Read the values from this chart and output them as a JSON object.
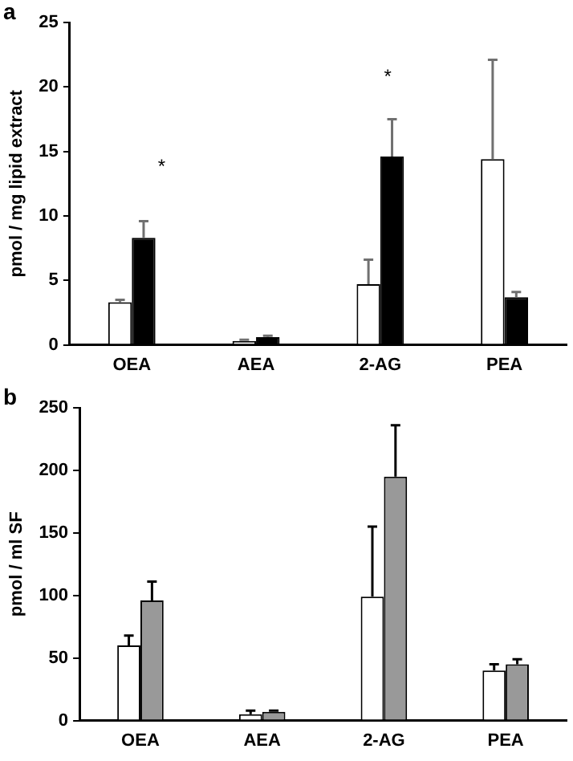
{
  "chart_data": [
    {
      "type": "bar",
      "title": "a",
      "ylabel": "pmol / mg lipid extract",
      "categories": [
        "OEA",
        "AEA",
        "2-AG",
        "PEA"
      ],
      "series": [
        {
          "color": "#ffffff",
          "values": [
            3.3,
            0.3,
            4.7,
            14.4
          ],
          "errors": [
            [
              3.3,
              3.5
            ],
            [
              0.3,
              0.4
            ],
            [
              4.7,
              6.6
            ],
            [
              14.4,
              22.1
            ]
          ]
        },
        {
          "color": "#000000",
          "values": [
            8.3,
            0.6,
            14.6,
            3.7
          ],
          "errors": [
            [
              8.3,
              9.6
            ],
            [
              0.6,
              0.7
            ],
            [
              14.6,
              17.5
            ],
            [
              3.7,
              4.1
            ]
          ]
        }
      ],
      "ylim": [
        0,
        25
      ],
      "yticks": [
        0,
        5,
        10,
        15,
        20,
        25
      ],
      "grid": false,
      "annotations": [
        "*",
        "*"
      ]
    },
    {
      "type": "bar",
      "title": "b",
      "ylabel": "pmol / ml SF",
      "categories": [
        "OEA",
        "AEA",
        "2-AG",
        "PEA"
      ],
      "series": [
        {
          "color": "#ffffff",
          "values": [
            60,
            5,
            99,
            40
          ],
          "errors": [
            [
              60,
              68
            ],
            [
              5,
              8
            ],
            [
              99,
              155
            ],
            [
              40,
              45
            ]
          ]
        },
        {
          "color": "#999999",
          "values": [
            96,
            7,
            195,
            45
          ],
          "errors": [
            [
              96,
              111
            ],
            [
              7,
              8
            ],
            [
              195,
              236
            ],
            [
              45,
              49
            ]
          ]
        }
      ],
      "ylim": [
        0,
        250
      ],
      "yticks": [
        0,
        50,
        100,
        150,
        200,
        250
      ],
      "grid": false
    }
  ]
}
